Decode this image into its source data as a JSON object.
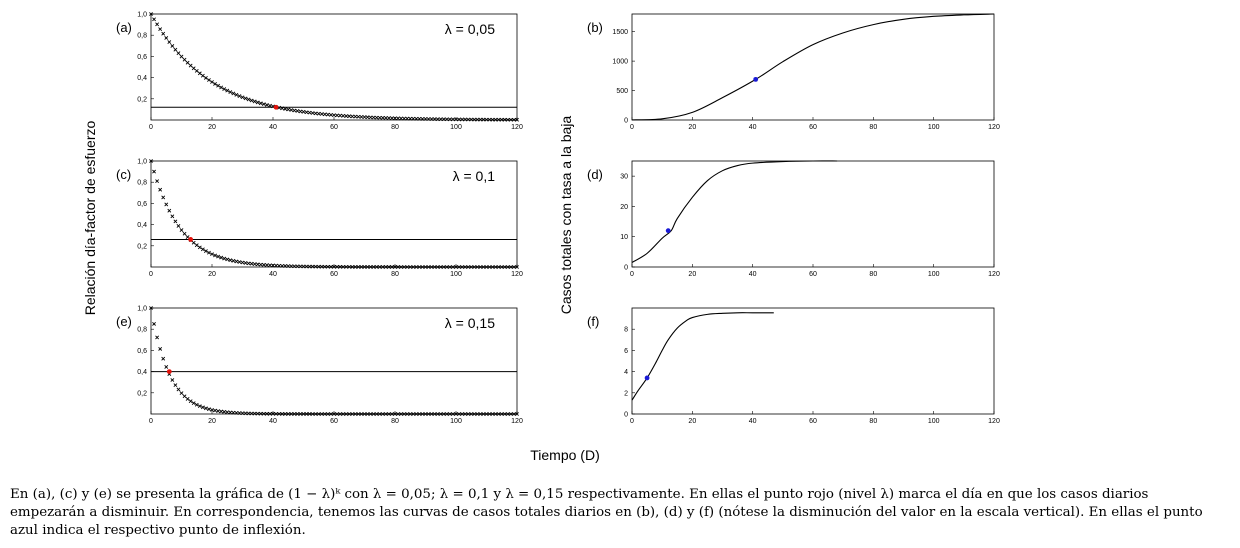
{
  "chart_data": [
    {
      "panel": "(a)",
      "type": "scatter",
      "annotation": "λ = 0,05",
      "xlim": [
        0,
        120
      ],
      "ylim": [
        0,
        1
      ],
      "xticks": [
        "0",
        "20",
        "40",
        "60",
        "80",
        "100",
        "120"
      ],
      "yticks": [
        "0,2",
        "0,4",
        "0,6",
        "0,8",
        "1,0"
      ],
      "series": [
        {
          "marker": "x",
          "color": "#000000",
          "formula": "(1-λ)^k",
          "lambda": 0.05,
          "x_range": [
            0,
            120
          ],
          "step": 1
        },
        {
          "marker": "o",
          "color": "#e3120b",
          "x": [
            41
          ],
          "y": [
            0.12
          ]
        }
      ],
      "hline": 0.12
    },
    {
      "panel": "(b)",
      "type": "line",
      "xlim": [
        0,
        120
      ],
      "ylim": [
        0,
        1800
      ],
      "xticks": [
        "0",
        "20",
        "40",
        "60",
        "80",
        "100",
        "120"
      ],
      "yticks": [
        "0",
        "500",
        "1000",
        "1500"
      ],
      "series": [
        {
          "color": "#000000",
          "x": [
            0,
            10,
            20,
            30,
            41,
            50,
            60,
            70,
            80,
            90,
            100,
            110,
            120
          ],
          "y": [
            2,
            20,
            130,
            380,
            690,
            990,
            1280,
            1480,
            1620,
            1710,
            1760,
            1785,
            1800
          ]
        },
        {
          "marker": "o",
          "color": "#1a1ad6",
          "x": [
            41
          ],
          "y": [
            690
          ]
        }
      ]
    },
    {
      "panel": "(c)",
      "type": "scatter",
      "annotation": "λ = 0,1",
      "xlim": [
        0,
        120
      ],
      "ylim": [
        0,
        1
      ],
      "xticks": [
        "0",
        "20",
        "40",
        "60",
        "80",
        "100",
        "120"
      ],
      "yticks": [
        "0,2",
        "0,4",
        "0,6",
        "0,8",
        "1,0"
      ],
      "series": [
        {
          "marker": "x",
          "color": "#000000",
          "formula": "(1-λ)^k",
          "lambda": 0.1,
          "x_range": [
            0,
            120
          ],
          "step": 1
        },
        {
          "marker": "o",
          "color": "#e3120b",
          "x": [
            13
          ],
          "y": [
            0.26
          ]
        }
      ],
      "hline": 0.26
    },
    {
      "panel": "(d)",
      "type": "line",
      "xlim": [
        0,
        120
      ],
      "ylim": [
        0,
        35
      ],
      "xticks": [
        "0",
        "20",
        "40",
        "60",
        "80",
        "100",
        "120"
      ],
      "yticks": [
        "0",
        "10",
        "20",
        "30"
      ],
      "series": [
        {
          "color": "#000000",
          "x": [
            0,
            5,
            10,
            13,
            15,
            20,
            25,
            30,
            35,
            40,
            50,
            60,
            68
          ],
          "y": [
            1.5,
            4.5,
            9.5,
            12,
            16,
            23,
            28.5,
            31.8,
            33.5,
            34.3,
            34.8,
            35,
            35
          ]
        },
        {
          "marker": "o",
          "color": "#1a1ad6",
          "x": [
            12
          ],
          "y": [
            12
          ]
        }
      ]
    },
    {
      "panel": "(e)",
      "type": "scatter",
      "annotation": "λ = 0,15",
      "xlim": [
        0,
        120
      ],
      "ylim": [
        0,
        1
      ],
      "xticks": [
        "0",
        "20",
        "40",
        "60",
        "80",
        "100",
        "120"
      ],
      "yticks": [
        "0,2",
        "0,4",
        "0,6",
        "0,8",
        "1,0"
      ],
      "series": [
        {
          "marker": "x",
          "color": "#000000",
          "formula": "(1-λ)^k",
          "lambda": 0.15,
          "x_range": [
            0,
            120
          ],
          "step": 1
        },
        {
          "marker": "o",
          "color": "#e3120b",
          "x": [
            6
          ],
          "y": [
            0.4
          ]
        }
      ],
      "hline": 0.4
    },
    {
      "panel": "(f)",
      "type": "line",
      "xlim": [
        0,
        120
      ],
      "ylim": [
        0,
        10
      ],
      "xticks": [
        "0",
        "20",
        "40",
        "60",
        "80",
        "100",
        "120"
      ],
      "yticks": [
        "0",
        "2",
        "4",
        "6",
        "8"
      ],
      "series": [
        {
          "color": "#000000",
          "x": [
            0,
            2,
            5,
            8,
            10,
            12,
            15,
            18,
            20,
            25,
            30,
            35,
            40,
            47
          ],
          "y": [
            1.3,
            2.2,
            3.4,
            4.9,
            6.0,
            7.0,
            8.1,
            8.8,
            9.1,
            9.4,
            9.5,
            9.55,
            9.55,
            9.55
          ]
        },
        {
          "marker": "o",
          "color": "#1a1ad6",
          "x": [
            5
          ],
          "y": [
            3.4
          ]
        }
      ]
    }
  ],
  "labels": {
    "ylabel_left": "Relación día-factor de esfuerzo",
    "ylabel_right": "Casos totales con tasa a la baja",
    "xlabel": "Tiempo (D)"
  },
  "caption": {
    "line1": "En (a), (c) y (e) se presenta la gráfica de (1 − λ)ᵏ con λ = 0,05; λ = 0,1 y λ = 0,15 respectivamente. En ellas el punto rojo (nivel λ) marca el día en que los casos diarios",
    "line2": "empezarán a disminuir. En correspondencia, tenemos las curvas de casos totales diarios en (b), (d) y (f) (nótese la disminución del valor en la escala vertical). En ellas el punto",
    "line3": "azul indica el respectivo punto de inflexión."
  }
}
